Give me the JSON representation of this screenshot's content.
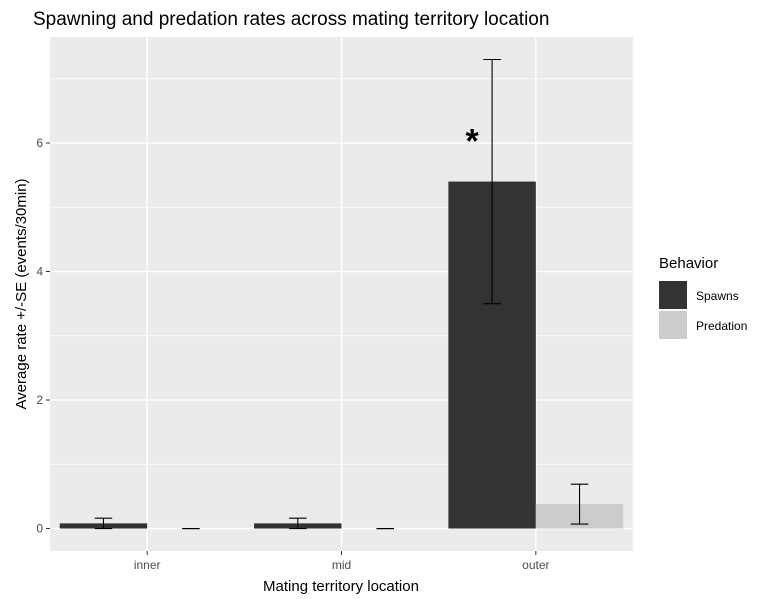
{
  "chart_data": {
    "type": "bar",
    "title": "Spawning and predation rates across mating territory location",
    "xlabel": "Mating territory location",
    "ylabel": "Average rate +/-SE (events/30min)",
    "categories": [
      "inner",
      "mid",
      "outer"
    ],
    "ylim": [
      -0.35,
      7.65
    ],
    "yticks": [
      0,
      2,
      4,
      6
    ],
    "grid": true,
    "legend": {
      "title": "Behavior",
      "position": "right"
    },
    "series": [
      {
        "name": "Spawns",
        "color": "#333333",
        "values": [
          0.08,
          0.08,
          5.4
        ],
        "se": [
          0.08,
          0.08,
          1.9
        ]
      },
      {
        "name": "Predation",
        "color": "#cccccc",
        "values": [
          0.0,
          0.0,
          0.38
        ],
        "se": [
          0.0,
          0.0,
          0.31
        ]
      }
    ],
    "annotations": [
      {
        "text": "*",
        "category": "outer",
        "series": "Spawns",
        "y": 6.1
      }
    ]
  }
}
